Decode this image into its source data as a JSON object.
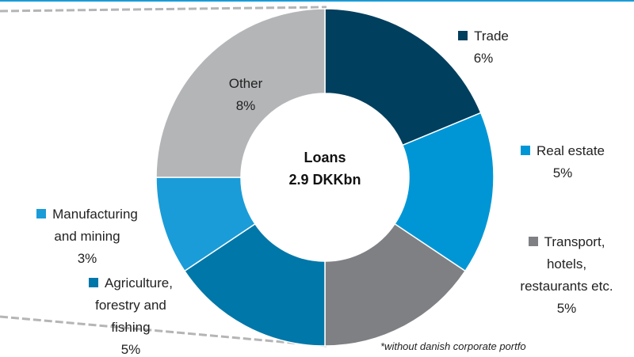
{
  "chart_data": {
    "type": "donut",
    "center_label": [
      "Loans",
      "2.9 DKKbn"
    ],
    "categories": [
      "Trade",
      "Real estate",
      "Transport,\nhotels,\nrestaurants etc.",
      "Agriculture,\nforestry and\nfishing",
      "Manufacturing\nand mining",
      "Other"
    ],
    "values": [
      6,
      5,
      5,
      5,
      3,
      8
    ],
    "value_labels": [
      "6%",
      "5%",
      "5%",
      "5%",
      "3%",
      "8%"
    ],
    "colors": [
      "#003f5e",
      "#0096d6",
      "#7f8084",
      "#0077a9",
      "#1a9cd8",
      "#b4b5b7"
    ],
    "footnote": "*without danish corporate portfo"
  }
}
